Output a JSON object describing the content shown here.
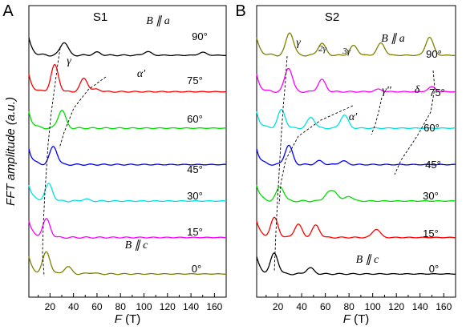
{
  "chart_data": [
    {
      "type": "line",
      "panel_label": "A",
      "sample_label": "S1",
      "xlabel_italic": "F",
      "xlabel_unit": "(T)",
      "ylabel": "FFT amplitude (a.u.)",
      "xlim": [
        2,
        170
      ],
      "xticks": [
        20,
        40,
        60,
        80,
        100,
        120,
        140,
        160
      ],
      "grid": false,
      "annotations": [
        {
          "text": "B ∥ a",
          "near": "top"
        },
        {
          "text": "γ",
          "near": "90° trace"
        },
        {
          "text": "α'",
          "near": "75° trace"
        },
        {
          "text": "B ∥ c",
          "near": "0° trace"
        }
      ],
      "series": [
        {
          "name": "90°",
          "color": "#000000",
          "offset": 7,
          "peaks": [
            {
              "x": 32,
              "y": 0.55
            },
            {
              "x": 60,
              "y": 0.12
            },
            {
              "x": 103,
              "y": 0.15
            },
            {
              "x": 150,
              "y": 0.12
            }
          ]
        },
        {
          "name": "75°",
          "color": "#ff0000",
          "offset": 6,
          "peaks": [
            {
              "x": 24,
              "y": 1.1
            },
            {
              "x": 49,
              "y": 0.55
            },
            {
              "x": 60,
              "y": 0.1
            }
          ]
        },
        {
          "name": "60°",
          "color": "#00dd00",
          "offset": 5,
          "peaks": [
            {
              "x": 30,
              "y": 0.75
            }
          ]
        },
        {
          "name": "45°",
          "color": "#0000ff",
          "offset": 4,
          "peaks": [
            {
              "x": 23,
              "y": 0.75
            }
          ]
        },
        {
          "name": "30°",
          "color": "#00e0e0",
          "offset": 3,
          "peaks": [
            {
              "x": 19,
              "y": 0.7
            },
            {
              "x": 50,
              "y": 0.08
            }
          ]
        },
        {
          "name": "15°",
          "color": "#ff00ff",
          "offset": 2,
          "peaks": [
            {
              "x": 17,
              "y": 0.75
            }
          ]
        },
        {
          "name": "0°",
          "color": "#808000",
          "offset": 1,
          "peaks": [
            {
              "x": 17,
              "y": 0.9
            },
            {
              "x": 35,
              "y": 0.3
            },
            {
              "x": 55,
              "y": 0.05
            }
          ]
        }
      ]
    },
    {
      "type": "line",
      "panel_label": "B",
      "sample_label": "S2",
      "xlabel_italic": "F",
      "xlabel_unit": "(T)",
      "ylabel": "",
      "xlim": [
        2,
        170
      ],
      "xticks": [
        20,
        40,
        60,
        80,
        100,
        120,
        140,
        160
      ],
      "grid": false,
      "annotations": [
        {
          "text": "B ∥ a",
          "near": "top"
        },
        {
          "text": "γ",
          "near": "90° trace"
        },
        {
          "text": "2γ",
          "near": "90° trace"
        },
        {
          "text": "3γ",
          "near": "90° trace"
        },
        {
          "text": "α'",
          "near": "60° trace"
        },
        {
          "text": "γ''",
          "near": "75° trace"
        },
        {
          "text": "δ",
          "near": "75° trace"
        },
        {
          "text": "B ∥ c",
          "near": "0° trace"
        }
      ],
      "series": [
        {
          "name": "90°",
          "color": "#808000",
          "offset": 7,
          "peaks": [
            {
              "x": 30,
              "y": 0.95
            },
            {
              "x": 57,
              "y": 0.5
            },
            {
              "x": 84,
              "y": 0.4
            },
            {
              "x": 107,
              "y": 0.5
            },
            {
              "x": 148,
              "y": 0.75
            }
          ]
        },
        {
          "name": "75°",
          "color": "#ff00ff",
          "offset": 6,
          "peaks": [
            {
              "x": 29,
              "y": 1.0
            },
            {
              "x": 57,
              "y": 0.5
            },
            {
              "x": 105,
              "y": 0.1
            },
            {
              "x": 150,
              "y": 0.2
            }
          ]
        },
        {
          "name": "60°",
          "color": "#00e0e0",
          "offset": 5,
          "peaks": [
            {
              "x": 23,
              "y": 0.75
            },
            {
              "x": 48,
              "y": 0.45
            },
            {
              "x": 76,
              "y": 0.55
            }
          ]
        },
        {
          "name": "45°",
          "color": "#0000ff",
          "offset": 4,
          "peaks": [
            {
              "x": 29,
              "y": 0.8
            },
            {
              "x": 55,
              "y": 0.15
            },
            {
              "x": 75,
              "y": 0.15
            }
          ]
        },
        {
          "name": "30°",
          "color": "#00dd00",
          "offset": 3,
          "peaks": [
            {
              "x": 22,
              "y": 0.6
            },
            {
              "x": 62,
              "y": 0.3
            },
            {
              "x": 68,
              "y": 0.35
            },
            {
              "x": 80,
              "y": 0.2
            }
          ]
        },
        {
          "name": "15°",
          "color": "#ff0000",
          "offset": 2,
          "peaks": [
            {
              "x": 17,
              "y": 0.8
            },
            {
              "x": 37,
              "y": 0.55
            },
            {
              "x": 52,
              "y": 0.5
            },
            {
              "x": 103,
              "y": 0.35
            }
          ]
        },
        {
          "name": "0°",
          "color": "#000000",
          "offset": 1,
          "peaks": [
            {
              "x": 17,
              "y": 0.85
            },
            {
              "x": 47,
              "y": 0.25
            }
          ]
        }
      ]
    }
  ]
}
